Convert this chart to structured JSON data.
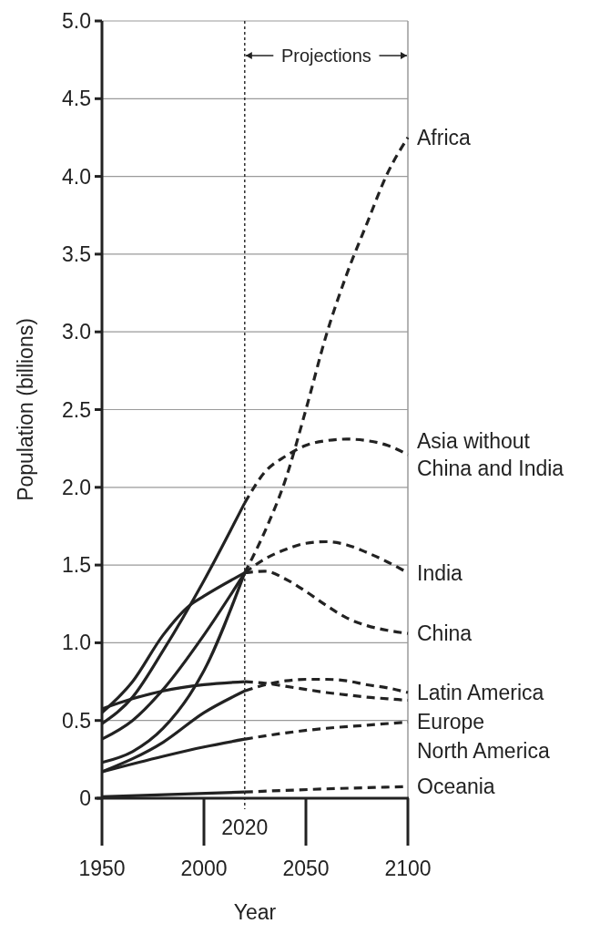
{
  "chart_data": {
    "type": "line",
    "xlabel": "Year",
    "ylabel": "Population (billions)",
    "xlim": [
      1950,
      2100
    ],
    "xticks": [
      1950,
      2000,
      2050,
      2100
    ],
    "ylim": [
      0,
      5
    ],
    "yticks": [
      0,
      {
        "value": 0.5,
        "label": "0.5"
      },
      {
        "value": 1,
        "label": "1.0"
      },
      {
        "value": 1.5,
        "label": "1.5"
      },
      {
        "value": 2,
        "label": "2.0"
      },
      {
        "value": 2.5,
        "label": "2.5"
      },
      {
        "value": 3,
        "label": "3.0"
      },
      {
        "value": 3.5,
        "label": "3.5"
      },
      {
        "value": 4,
        "label": "4.0"
      },
      {
        "value": 4.5,
        "label": "4.5"
      },
      {
        "value": 5,
        "label": "5.0"
      }
    ],
    "grid": "y",
    "legend": false,
    "marker": "none",
    "ref_lines": [
      {
        "axis": "x",
        "value": 2020,
        "label": "2020",
        "line_style": "dotted"
      }
    ],
    "annotations": [
      "Projections"
    ],
    "series": [
      {
        "color": "#222222",
        "line_style": "solid",
        "x": [
          1950,
          1965,
          1980,
          2000,
          2020
        ],
        "values": [
          0.23,
          0.3,
          0.45,
          0.82,
          1.45
        ]
      },
      {
        "color": "#222222",
        "line_style": "solid",
        "x": [
          1950,
          1965,
          1980,
          2000,
          2020
        ],
        "values": [
          0.48,
          0.65,
          0.95,
          1.4,
          1.9
        ]
      },
      {
        "color": "#222222",
        "line_style": "solid",
        "x": [
          1950,
          1965,
          1980,
          2000,
          2020
        ],
        "values": [
          0.38,
          0.5,
          0.7,
          1.05,
          1.45
        ]
      },
      {
        "color": "#222222",
        "line_style": "solid",
        "x": [
          1950,
          1965,
          1980,
          1993,
          2000,
          2020
        ],
        "values": [
          0.55,
          0.75,
          1.05,
          1.24,
          1.3,
          1.45
        ]
      },
      {
        "color": "#222222",
        "line_style": "solid",
        "x": [
          1950,
          1980,
          2000,
          2020
        ],
        "values": [
          0.17,
          0.36,
          0.55,
          0.69
        ]
      },
      {
        "color": "#222222",
        "line_style": "solid",
        "x": [
          1950,
          1965,
          1980,
          2000,
          2020
        ],
        "values": [
          0.575,
          0.64,
          0.69,
          0.73,
          0.75
        ]
      },
      {
        "color": "#222222",
        "line_style": "solid",
        "x": [
          1950,
          1980,
          2000,
          2020
        ],
        "values": [
          0.17,
          0.27,
          0.33,
          0.38
        ]
      },
      {
        "color": "#222222",
        "line_style": "solid",
        "x": [
          1950,
          2020
        ],
        "values": [
          0.01,
          0.04
        ]
      },
      {
        "name": "Africa",
        "color": "#222222",
        "line_style": "dashed",
        "x": [
          2020,
          2030,
          2040,
          2050,
          2060,
          2070,
          2080,
          2090,
          2100
        ],
        "values": [
          1.45,
          1.72,
          2.05,
          2.5,
          2.98,
          3.37,
          3.7,
          4.02,
          4.25
        ]
      },
      {
        "name": "Asia without China and India",
        "color": "#222222",
        "line_style": "dashed",
        "x": [
          2020,
          2030,
          2040,
          2050,
          2060,
          2070,
          2080,
          2090,
          2100
        ],
        "values": [
          1.9,
          2.1,
          2.2,
          2.27,
          2.3,
          2.31,
          2.3,
          2.27,
          2.21
        ]
      },
      {
        "name": "India",
        "color": "#222222",
        "line_style": "dashed",
        "x": [
          2020,
          2030,
          2040,
          2050,
          2060,
          2070,
          2080,
          2090,
          2100
        ],
        "values": [
          1.45,
          1.54,
          1.6,
          1.64,
          1.65,
          1.63,
          1.58,
          1.52,
          1.45
        ]
      },
      {
        "name": "China",
        "color": "#222222",
        "line_style": "dashed",
        "x": [
          2020,
          2030,
          2040,
          2050,
          2060,
          2070,
          2080,
          2090,
          2100
        ],
        "values": [
          1.45,
          1.46,
          1.41,
          1.33,
          1.24,
          1.16,
          1.11,
          1.08,
          1.06
        ]
      },
      {
        "name": "Latin America",
        "color": "#222222",
        "line_style": "dashed",
        "x": [
          2020,
          2030,
          2040,
          2050,
          2060,
          2070,
          2080,
          2090,
          2100
        ],
        "values": [
          0.69,
          0.73,
          0.755,
          0.765,
          0.765,
          0.755,
          0.73,
          0.71,
          0.68
        ]
      },
      {
        "name": "Europe",
        "color": "#222222",
        "line_style": "dashed",
        "x": [
          2020,
          2030,
          2040,
          2050,
          2060,
          2070,
          2080,
          2090,
          2100
        ],
        "values": [
          0.75,
          0.74,
          0.72,
          0.7,
          0.68,
          0.665,
          0.65,
          0.64,
          0.63
        ]
      },
      {
        "name": "North America",
        "color": "#222222",
        "line_style": "dashed",
        "x": [
          2020,
          2040,
          2060,
          2080,
          2100
        ],
        "values": [
          0.38,
          0.42,
          0.45,
          0.47,
          0.49
        ]
      },
      {
        "name": "Oceania",
        "color": "#222222",
        "line_style": "dashed",
        "x": [
          2020,
          2060,
          2100
        ],
        "values": [
          0.04,
          0.06,
          0.075
        ]
      }
    ]
  }
}
